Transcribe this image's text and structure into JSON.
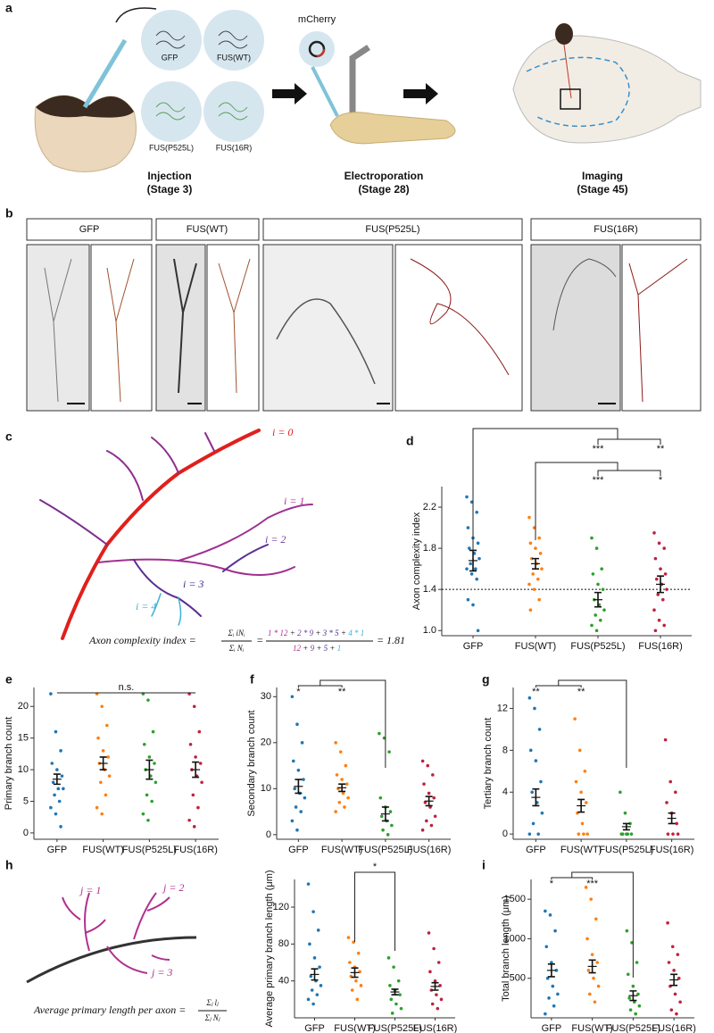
{
  "panel_labels": [
    "a",
    "b",
    "c",
    "d",
    "e",
    "f",
    "g",
    "h",
    "i"
  ],
  "panel_a": {
    "constructs": [
      "GFP",
      "FUS(WT)",
      "FUS(P525L)",
      "FUS(16R)"
    ],
    "plasmid": "mCherry",
    "steps": [
      {
        "title": "Injection",
        "stage": "(Stage 3)"
      },
      {
        "title": "Electroporation",
        "stage": "(Stage 28)"
      },
      {
        "title": "Imaging",
        "stage": "(Stage 45)"
      }
    ]
  },
  "panel_b": {
    "headers": [
      "GFP",
      "FUS(WT)",
      "FUS(P525L)",
      "FUS(16R)"
    ]
  },
  "panel_c": {
    "orders": [
      "i = 0",
      "i = 1",
      "i = 2",
      "i = 3",
      "i = 4"
    ],
    "lhs": "Axon complexity index =",
    "sym_num": "Σᵢ iNᵢ",
    "sym_den": "Σᵢ Nᵢ",
    "equals": "=",
    "plus": "+",
    "num_terms": [
      "1 * 12",
      "2 * 9",
      "3 * 5",
      "4 * 1"
    ],
    "den_terms": [
      "12",
      "9",
      "5",
      "1"
    ],
    "result": "1.81"
  },
  "panel_h": {
    "orders": [
      "j = 1",
      "j = 2",
      "j = 3"
    ],
    "lhs": "Average primary length per axon =",
    "sym_num": "Σⱼ lⱼ",
    "sym_den": "Σⱼ Nⱼ"
  },
  "chart_data": [
    {
      "type": "strip",
      "ylabel": "Axon complexity index",
      "categories": [
        "GFP",
        "FUS(WT)",
        "FUS(P525L)",
        "FUS(16R)"
      ],
      "ylim": [
        0.95,
        2.4
      ],
      "yticks": [
        {
          "value": 1,
          "label": "1.0"
        },
        1.4,
        1.8,
        2.2
      ],
      "hline": 1.4,
      "annotations": [
        "***",
        "**",
        "***",
        "*"
      ],
      "groups": [
        {
          "color": "#1f77b4",
          "values": [
            2.3,
            2.25,
            2.15,
            2.0,
            1.9,
            1.85,
            1.8,
            1.75,
            1.7,
            1.65,
            1.6,
            1.6,
            1.55,
            1.5,
            1.3,
            1.25,
            1.0
          ],
          "mean": 1.68,
          "sem": 0.1
        },
        {
          "color": "#ff7f0e",
          "values": [
            2.1,
            2.0,
            1.9,
            1.85,
            1.8,
            1.75,
            1.7,
            1.65,
            1.6,
            1.55,
            1.5,
            1.45,
            1.4,
            1.3,
            1.2
          ],
          "mean": 1.65,
          "sem": 0.05
        },
        {
          "color": "#2ca02c",
          "values": [
            1.9,
            1.8,
            1.6,
            1.55,
            1.45,
            1.4,
            1.3,
            1.25,
            1.2,
            1.15,
            1.1,
            1.05,
            1.0
          ],
          "mean": 1.3,
          "sem": 0.07
        },
        {
          "color": "#c0213f",
          "values": [
            1.95,
            1.85,
            1.8,
            1.7,
            1.6,
            1.55,
            1.5,
            1.45,
            1.4,
            1.35,
            1.3,
            1.2,
            1.1,
            1.05,
            1.0
          ],
          "mean": 1.45,
          "sem": 0.08
        }
      ]
    },
    {
      "type": "strip",
      "ylabel": "Primary branch count",
      "categories": [
        "GFP",
        "FUS(WT)",
        "FUS(P525L)",
        "FUS(16R)"
      ],
      "ylim": [
        -1,
        23
      ],
      "yticks": [
        0,
        5,
        10,
        15,
        20
      ],
      "annotations": [
        "n.s."
      ],
      "groups": [
        {
          "color": "#1f77b4",
          "values": [
            22,
            16,
            13,
            11,
            10,
            9,
            8,
            7,
            7,
            6,
            5,
            4,
            3,
            1
          ],
          "mean": 8.5,
          "sem": 0.8
        },
        {
          "color": "#ff7f0e",
          "values": [
            22,
            20,
            17,
            15,
            13,
            12,
            11,
            10,
            9,
            8,
            6,
            4,
            3
          ],
          "mean": 11,
          "sem": 1
        },
        {
          "color": "#2ca02c",
          "values": [
            22,
            21,
            16,
            14,
            12,
            11,
            10,
            9,
            8,
            6,
            5,
            3,
            2
          ],
          "mean": 10,
          "sem": 1.5
        },
        {
          "color": "#c0213f",
          "values": [
            22,
            20,
            16,
            14,
            12,
            11,
            10,
            9,
            8,
            6,
            4,
            2,
            1
          ],
          "mean": 10,
          "sem": 1.2
        }
      ]
    },
    {
      "type": "strip",
      "ylabel": "Secondary branch count",
      "categories": [
        "GFP",
        "FUS(WT)",
        "FUS(P525L)",
        "FUS(16R)"
      ],
      "ylim": [
        -1,
        32
      ],
      "yticks": [
        0,
        10,
        20,
        30
      ],
      "annotations": [
        "*",
        "**"
      ],
      "groups": [
        {
          "color": "#1f77b4",
          "values": [
            30,
            24,
            20,
            16,
            14,
            12,
            10,
            9,
            8,
            6,
            5,
            3,
            1
          ],
          "mean": 10.5,
          "sem": 1.5
        },
        {
          "color": "#ff7f0e",
          "values": [
            20,
            18,
            15,
            13,
            12,
            11,
            10,
            9,
            8,
            7,
            6,
            5
          ],
          "mean": 10.2,
          "sem": 0.8
        },
        {
          "color": "#2ca02c",
          "values": [
            22,
            21,
            18,
            8,
            6,
            5,
            4,
            3,
            2,
            1,
            0
          ],
          "mean": 4.5,
          "sem": 1.5
        },
        {
          "color": "#c0213f",
          "values": [
            16,
            15,
            13,
            11,
            9,
            8,
            7,
            6,
            4,
            3,
            2,
            1
          ],
          "mean": 7.3,
          "sem": 1
        }
      ]
    },
    {
      "type": "strip",
      "ylabel": "Tertiary branch count",
      "categories": [
        "GFP",
        "FUS(WT)",
        "FUS(P525L)",
        "FUS(16R)"
      ],
      "ylim": [
        -0.5,
        14
      ],
      "yticks": [
        0,
        4,
        8,
        12
      ],
      "annotations": [
        "**",
        "**"
      ],
      "groups": [
        {
          "color": "#1f77b4",
          "values": [
            13,
            12,
            10,
            8,
            7,
            5,
            4,
            3,
            2,
            1,
            0,
            0
          ],
          "mean": 3.5,
          "sem": 0.8
        },
        {
          "color": "#ff7f0e",
          "values": [
            11,
            8,
            6,
            5,
            4,
            3,
            2,
            1,
            0,
            0,
            0
          ],
          "mean": 2.7,
          "sem": 0.6
        },
        {
          "color": "#2ca02c",
          "values": [
            4,
            2,
            1,
            0,
            0,
            0,
            0,
            0
          ],
          "mean": 0.7,
          "sem": 0.3
        },
        {
          "color": "#c0213f",
          "values": [
            9,
            5,
            4,
            3,
            2,
            1,
            0,
            0,
            0
          ],
          "mean": 1.5,
          "sem": 0.5
        }
      ]
    },
    {
      "type": "strip",
      "ylabel": "Average primary branch length (μm)",
      "categories": [
        "GFP",
        "FUS(WT)",
        "FUS(P525L)",
        "FUS(16R)"
      ],
      "ylim": [
        0,
        150
      ],
      "yticks": [
        40,
        80,
        120
      ],
      "annotations": [
        "*"
      ],
      "groups": [
        {
          "color": "#1f77b4",
          "values": [
            145,
            115,
            95,
            80,
            65,
            55,
            45,
            40,
            35,
            30,
            25,
            20,
            15
          ],
          "mean": 47,
          "sem": 6
        },
        {
          "color": "#ff7f0e",
          "values": [
            87,
            82,
            70,
            60,
            55,
            50,
            45,
            40,
            35,
            30,
            20
          ],
          "mean": 49,
          "sem": 5
        },
        {
          "color": "#2ca02c",
          "values": [
            65,
            55,
            40,
            35,
            30,
            25,
            20,
            15,
            10,
            5
          ],
          "mean": 28,
          "sem": 3
        },
        {
          "color": "#c0213f",
          "values": [
            92,
            75,
            60,
            50,
            40,
            35,
            30,
            25,
            20,
            15,
            10
          ],
          "mean": 34,
          "sem": 4
        }
      ]
    },
    {
      "type": "strip",
      "ylabel": "Total branch length (μm)",
      "categories": [
        "GFP",
        "FUS(WT)",
        "FUS(P525L)",
        "FUS(16R)"
      ],
      "ylim": [
        0,
        1750
      ],
      "yticks": [
        500,
        1000,
        1500
      ],
      "annotations": [
        "*",
        "***"
      ],
      "groups": [
        {
          "color": "#1f77b4",
          "values": [
            1350,
            1300,
            1100,
            900,
            700,
            600,
            500,
            400,
            300,
            250,
            150,
            50
          ],
          "mean": 600,
          "sem": 80
        },
        {
          "color": "#ff7f0e",
          "values": [
            1650,
            1500,
            1250,
            1000,
            800,
            700,
            600,
            500,
            400,
            300,
            200
          ],
          "mean": 650,
          "sem": 80
        },
        {
          "color": "#2ca02c",
          "values": [
            1100,
            950,
            700,
            550,
            400,
            300,
            250,
            200,
            150,
            100,
            50
          ],
          "mean": 280,
          "sem": 60
        },
        {
          "color": "#c0213f",
          "values": [
            1200,
            900,
            800,
            700,
            600,
            500,
            400,
            300,
            200,
            100,
            50
          ],
          "mean": 480,
          "sem": 70
        }
      ]
    }
  ]
}
